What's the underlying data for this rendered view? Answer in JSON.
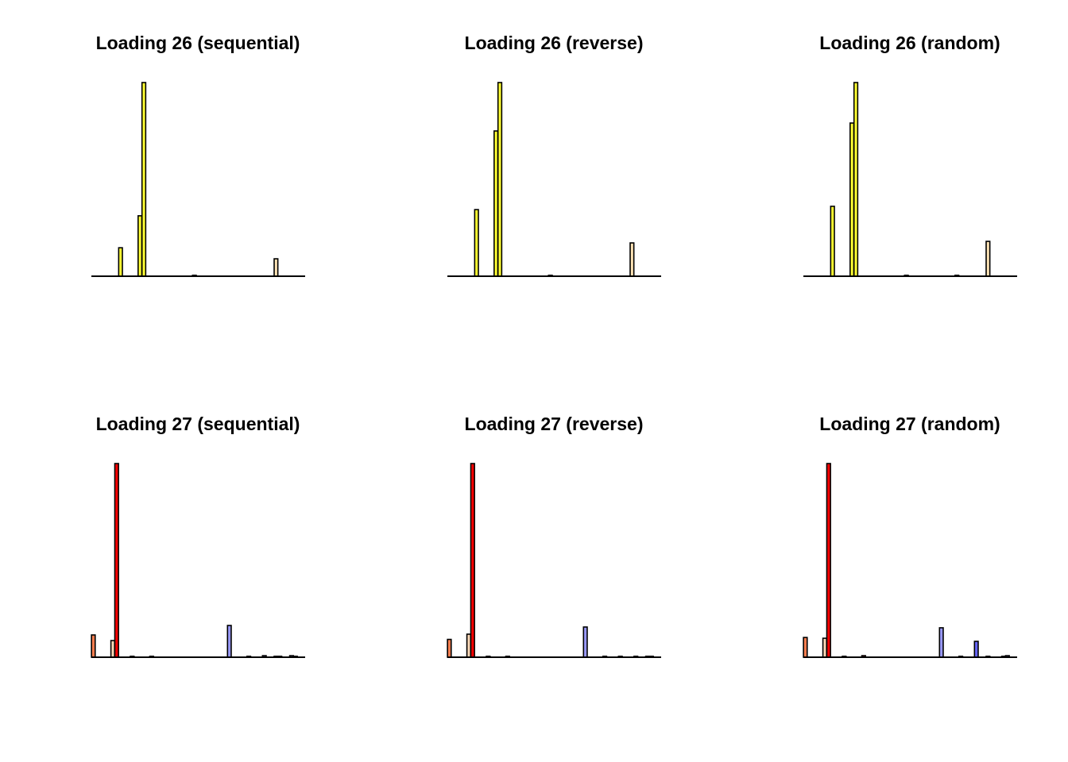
{
  "chart_data": [
    {
      "type": "bar",
      "title": "Loading 26 (sequential)",
      "n_bars": 55,
      "ylim": [
        0,
        1
      ],
      "axes": false,
      "bars": [
        {
          "index": 7,
          "value": 0.147,
          "color": "#FFFF33"
        },
        {
          "index": 12,
          "value": 0.312,
          "color": "#FFFF33"
        },
        {
          "index": 13,
          "value": 1.0,
          "color": "#FFFF33"
        },
        {
          "index": 26,
          "value": 0.005,
          "color": "#FFFF33"
        },
        {
          "index": 47,
          "value": 0.09,
          "color": "#FFE4B5"
        }
      ]
    },
    {
      "type": "bar",
      "title": "Loading 26 (reverse)",
      "n_bars": 55,
      "ylim": [
        0,
        1
      ],
      "axes": false,
      "bars": [
        {
          "index": 7,
          "value": 0.344,
          "color": "#FFFF33"
        },
        {
          "index": 12,
          "value": 0.75,
          "color": "#FFFF33"
        },
        {
          "index": 13,
          "value": 1.0,
          "color": "#FFFF33"
        },
        {
          "index": 26,
          "value": 0.004,
          "color": "#FFFF33"
        },
        {
          "index": 47,
          "value": 0.172,
          "color": "#FFE4B5"
        }
      ]
    },
    {
      "type": "bar",
      "title": "Loading 26 (random)",
      "n_bars": 55,
      "ylim": [
        0,
        1
      ],
      "axes": false,
      "bars": [
        {
          "index": 7,
          "value": 0.361,
          "color": "#FFFF33"
        },
        {
          "index": 12,
          "value": 0.791,
          "color": "#FFFF33"
        },
        {
          "index": 13,
          "value": 1.0,
          "color": "#FFFF33"
        },
        {
          "index": 26,
          "value": 0.004,
          "color": "#FFFF33"
        },
        {
          "index": 39,
          "value": 0.003,
          "color": "#FFFF33"
        },
        {
          "index": 47,
          "value": 0.18,
          "color": "#FFE4B5"
        }
      ]
    },
    {
      "type": "bar",
      "title": "Loading 27 (sequential)",
      "n_bars": 55,
      "ylim": [
        0,
        1
      ],
      "axes": false,
      "bars": [
        {
          "index": 0,
          "value": 0.115,
          "color": "#FF7F50"
        },
        {
          "index": 5,
          "value": 0.086,
          "color": "#FFDAB9"
        },
        {
          "index": 6,
          "value": 1.0,
          "color": "#FF0000"
        },
        {
          "index": 10,
          "value": 0.004,
          "color": "#FF0000"
        },
        {
          "index": 15,
          "value": 0.004,
          "color": "#FF0000"
        },
        {
          "index": 35,
          "value": 0.164,
          "color": "#9999FF"
        },
        {
          "index": 40,
          "value": 0.004,
          "color": "#9999FF"
        },
        {
          "index": 44,
          "value": 0.008,
          "color": "#9999FF"
        },
        {
          "index": 47,
          "value": 0.004,
          "color": "#9999FF"
        },
        {
          "index": 48,
          "value": 0.004,
          "color": "#9999FF"
        },
        {
          "index": 51,
          "value": 0.008,
          "color": "#9999FF"
        },
        {
          "index": 52,
          "value": 0.004,
          "color": "#9999FF"
        }
      ]
    },
    {
      "type": "bar",
      "title": "Loading 27 (reverse)",
      "n_bars": 55,
      "ylim": [
        0,
        1
      ],
      "axes": false,
      "bars": [
        {
          "index": 0,
          "value": 0.092,
          "color": "#FF7F50"
        },
        {
          "index": 5,
          "value": 0.119,
          "color": "#FFDAB9"
        },
        {
          "index": 6,
          "value": 1.0,
          "color": "#FF0000"
        },
        {
          "index": 10,
          "value": 0.004,
          "color": "#FF0000"
        },
        {
          "index": 15,
          "value": 0.004,
          "color": "#FF0000"
        },
        {
          "index": 35,
          "value": 0.156,
          "color": "#9999FF"
        },
        {
          "index": 40,
          "value": 0.004,
          "color": "#9999FF"
        },
        {
          "index": 44,
          "value": 0.004,
          "color": "#9999FF"
        },
        {
          "index": 48,
          "value": 0.004,
          "color": "#9999FF"
        },
        {
          "index": 51,
          "value": 0.004,
          "color": "#9999FF"
        },
        {
          "index": 52,
          "value": 0.004,
          "color": "#9999FF"
        }
      ]
    },
    {
      "type": "bar",
      "title": "Loading 27 (random)",
      "n_bars": 55,
      "ylim": [
        0,
        1
      ],
      "axes": false,
      "bars": [
        {
          "index": 0,
          "value": 0.102,
          "color": "#FF7F50"
        },
        {
          "index": 5,
          "value": 0.098,
          "color": "#FFDAB9"
        },
        {
          "index": 6,
          "value": 1.0,
          "color": "#FF0000"
        },
        {
          "index": 10,
          "value": 0.004,
          "color": "#FF0000"
        },
        {
          "index": 15,
          "value": 0.008,
          "color": "#FF0000"
        },
        {
          "index": 35,
          "value": 0.152,
          "color": "#9999FF"
        },
        {
          "index": 40,
          "value": 0.004,
          "color": "#9999FF"
        },
        {
          "index": 44,
          "value": 0.082,
          "color": "#6666FF"
        },
        {
          "index": 47,
          "value": 0.004,
          "color": "#9999FF"
        },
        {
          "index": 51,
          "value": 0.004,
          "color": "#9999FF"
        },
        {
          "index": 52,
          "value": 0.008,
          "color": "#9999FF"
        }
      ]
    }
  ]
}
